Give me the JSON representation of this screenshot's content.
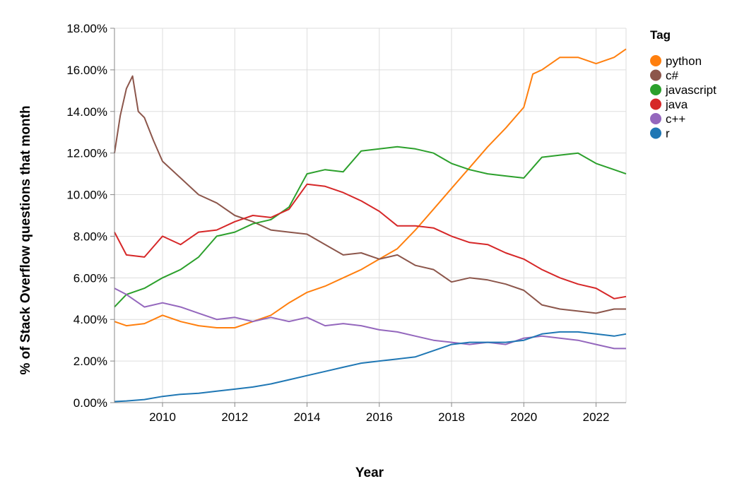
{
  "chart_data": {
    "type": "line",
    "xlabel": "Year",
    "ylabel": "% of Stack Overflow questions that month",
    "xlim": [
      2008.67,
      2022.83
    ],
    "ylim": [
      0,
      18
    ],
    "x_ticks": [
      "2010",
      "2012",
      "2014",
      "2016",
      "2018",
      "2020",
      "2022"
    ],
    "y_ticks": [
      "0.00%",
      "2.00%",
      "4.00%",
      "6.00%",
      "8.00%",
      "10.00%",
      "12.00%",
      "14.00%",
      "16.00%",
      "18.00%"
    ],
    "grid": true,
    "legend": {
      "title": "Tag",
      "position": "right"
    },
    "series": [
      {
        "name": "python",
        "color": "#ff7f0e",
        "x": [
          2008.67,
          2009.0,
          2009.5,
          2010.0,
          2010.5,
          2011.0,
          2011.5,
          2012.0,
          2012.5,
          2013.0,
          2013.5,
          2014.0,
          2014.5,
          2015.0,
          2015.5,
          2016.0,
          2016.5,
          2017.0,
          2017.5,
          2018.0,
          2018.5,
          2019.0,
          2019.5,
          2020.0,
          2020.25,
          2020.5,
          2021.0,
          2021.5,
          2022.0,
          2022.5,
          2022.83
        ],
        "y": [
          3.9,
          3.7,
          3.8,
          4.2,
          3.9,
          3.7,
          3.6,
          3.6,
          3.9,
          4.2,
          4.8,
          5.3,
          5.6,
          6.0,
          6.4,
          6.9,
          7.4,
          8.3,
          9.3,
          10.3,
          11.3,
          12.3,
          13.2,
          14.2,
          15.8,
          16.0,
          16.6,
          16.6,
          16.3,
          16.6,
          17.0
        ]
      },
      {
        "name": "c#",
        "color": "#8c564b",
        "x": [
          2008.67,
          2008.83,
          2009.0,
          2009.17,
          2009.33,
          2009.5,
          2009.75,
          2010.0,
          2010.5,
          2011.0,
          2011.5,
          2012.0,
          2012.5,
          2013.0,
          2013.5,
          2014.0,
          2014.5,
          2015.0,
          2015.5,
          2016.0,
          2016.5,
          2017.0,
          2017.5,
          2018.0,
          2018.5,
          2019.0,
          2019.5,
          2020.0,
          2020.5,
          2021.0,
          2021.5,
          2022.0,
          2022.5,
          2022.83
        ],
        "y": [
          12.0,
          13.8,
          15.1,
          15.7,
          14.0,
          13.7,
          12.6,
          11.6,
          10.8,
          10.0,
          9.6,
          9.0,
          8.7,
          8.3,
          8.2,
          8.1,
          7.6,
          7.1,
          7.2,
          6.9,
          7.1,
          6.6,
          6.4,
          5.8,
          6.0,
          5.9,
          5.7,
          5.4,
          4.7,
          4.5,
          4.4,
          4.3,
          4.5,
          4.5
        ]
      },
      {
        "name": "javascript",
        "color": "#2ca02c",
        "x": [
          2008.67,
          2009.0,
          2009.5,
          2010.0,
          2010.5,
          2011.0,
          2011.5,
          2012.0,
          2012.5,
          2013.0,
          2013.5,
          2014.0,
          2014.5,
          2015.0,
          2015.5,
          2016.0,
          2016.5,
          2017.0,
          2017.5,
          2018.0,
          2018.5,
          2019.0,
          2019.5,
          2020.0,
          2020.5,
          2021.0,
          2021.5,
          2022.0,
          2022.5,
          2022.83
        ],
        "y": [
          4.6,
          5.2,
          5.5,
          6.0,
          6.4,
          7.0,
          8.0,
          8.2,
          8.6,
          8.8,
          9.4,
          11.0,
          11.2,
          11.1,
          12.1,
          12.2,
          12.3,
          12.2,
          12.0,
          11.5,
          11.2,
          11.0,
          10.9,
          10.8,
          11.8,
          11.9,
          12.0,
          11.5,
          11.2,
          11.0
        ]
      },
      {
        "name": "java",
        "color": "#d62728",
        "x": [
          2008.67,
          2009.0,
          2009.5,
          2010.0,
          2010.5,
          2011.0,
          2011.5,
          2012.0,
          2012.5,
          2013.0,
          2013.5,
          2014.0,
          2014.5,
          2015.0,
          2015.5,
          2016.0,
          2016.5,
          2017.0,
          2017.5,
          2018.0,
          2018.5,
          2019.0,
          2019.5,
          2020.0,
          2020.5,
          2021.0,
          2021.5,
          2022.0,
          2022.5,
          2022.83
        ],
        "y": [
          8.2,
          7.1,
          7.0,
          8.0,
          7.6,
          8.2,
          8.3,
          8.7,
          9.0,
          8.9,
          9.3,
          10.5,
          10.4,
          10.1,
          9.7,
          9.2,
          8.5,
          8.5,
          8.4,
          8.0,
          7.7,
          7.6,
          7.2,
          6.9,
          6.4,
          6.0,
          5.7,
          5.5,
          5.0,
          5.1
        ]
      },
      {
        "name": "c++",
        "color": "#9467bd",
        "x": [
          2008.67,
          2009.0,
          2009.5,
          2010.0,
          2010.5,
          2011.0,
          2011.5,
          2012.0,
          2012.5,
          2013.0,
          2013.5,
          2014.0,
          2014.5,
          2015.0,
          2015.5,
          2016.0,
          2016.5,
          2017.0,
          2017.5,
          2018.0,
          2018.5,
          2019.0,
          2019.5,
          2020.0,
          2020.5,
          2021.0,
          2021.5,
          2022.0,
          2022.5,
          2022.83
        ],
        "y": [
          5.5,
          5.2,
          4.6,
          4.8,
          4.6,
          4.3,
          4.0,
          4.1,
          3.9,
          4.1,
          3.9,
          4.1,
          3.7,
          3.8,
          3.7,
          3.5,
          3.4,
          3.2,
          3.0,
          2.9,
          2.8,
          2.9,
          2.8,
          3.1,
          3.2,
          3.1,
          3.0,
          2.8,
          2.6,
          2.6
        ]
      },
      {
        "name": "r",
        "color": "#1f77b4",
        "x": [
          2008.67,
          2009.0,
          2009.5,
          2010.0,
          2010.5,
          2011.0,
          2011.5,
          2012.0,
          2012.5,
          2013.0,
          2013.5,
          2014.0,
          2014.5,
          2015.0,
          2015.5,
          2016.0,
          2016.5,
          2017.0,
          2017.5,
          2018.0,
          2018.5,
          2019.0,
          2019.5,
          2020.0,
          2020.5,
          2021.0,
          2021.5,
          2022.0,
          2022.5,
          2022.83
        ],
        "y": [
          0.05,
          0.08,
          0.15,
          0.3,
          0.4,
          0.45,
          0.55,
          0.65,
          0.75,
          0.9,
          1.1,
          1.3,
          1.5,
          1.7,
          1.9,
          2.0,
          2.1,
          2.2,
          2.5,
          2.8,
          2.9,
          2.9,
          2.9,
          3.0,
          3.3,
          3.4,
          3.4,
          3.3,
          3.2,
          3.3
        ]
      }
    ]
  }
}
